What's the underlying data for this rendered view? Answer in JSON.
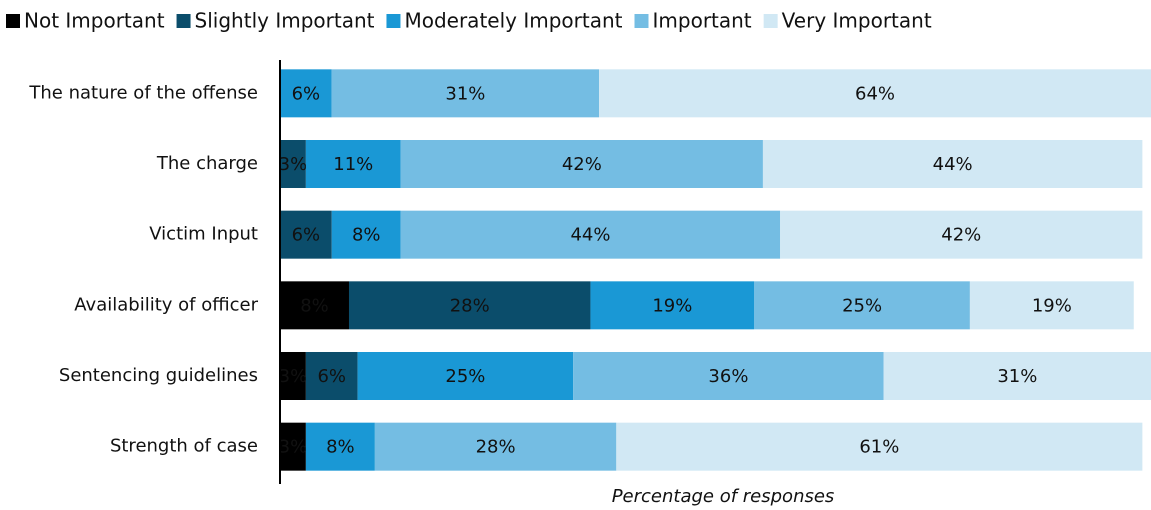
{
  "chart_data": {
    "type": "stacked-bar-horizontal",
    "categories": [
      "The nature of the offense",
      "The charge",
      "Victim Input",
      "Availability of officer",
      "Sentencing guidelines",
      "Strength of case"
    ],
    "series": [
      {
        "name": "Not Important",
        "color": "#000000",
        "values": [
          null,
          null,
          null,
          8,
          3,
          3
        ],
        "value_labels": [
          null,
          null,
          null,
          "8%",
          "3%",
          "3%"
        ]
      },
      {
        "name": "Slightly Important",
        "color": "#0b4d6b",
        "values": [
          null,
          3,
          6,
          28,
          6,
          null
        ],
        "value_labels": [
          null,
          "3%",
          "6%",
          "28%",
          "6%",
          null
        ]
      },
      {
        "name": "Moderately Important",
        "color": "#1a98d5",
        "values": [
          6,
          11,
          8,
          19,
          25,
          8
        ],
        "value_labels": [
          "6%",
          "11%",
          "8%",
          "19%",
          "25%",
          "8%"
        ]
      },
      {
        "name": "Important",
        "color": "#74bde3",
        "values": [
          31,
          42,
          44,
          25,
          36,
          28
        ],
        "value_labels": [
          "31%",
          "42%",
          "44%",
          "25%",
          "36%",
          "28%"
        ]
      },
      {
        "name": "Very Important",
        "color": "#d1e8f4",
        "values": [
          64,
          44,
          42,
          19,
          31,
          61
        ],
        "value_labels": [
          "64%",
          "44%",
          "42%",
          "19%",
          "31%",
          "61%"
        ]
      }
    ],
    "xlim": [
      0,
      101
    ],
    "x_label": "Percentage of responses",
    "legend": "top"
  }
}
